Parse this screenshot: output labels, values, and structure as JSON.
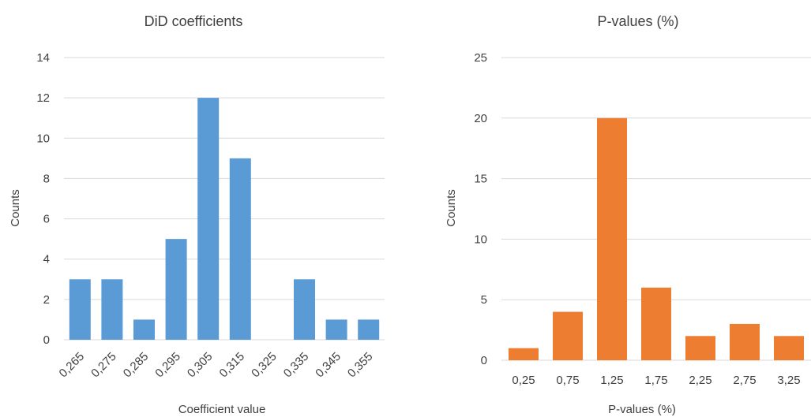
{
  "chart_data": [
    {
      "type": "bar",
      "title": "DiD coefficients",
      "xlabel": "Coefficient value",
      "ylabel": "Counts",
      "categories": [
        "0,265",
        "0,275",
        "0,285",
        "0,295",
        "0,305",
        "0,315",
        "0,325",
        "0,335",
        "0,345",
        "0,355"
      ],
      "values": [
        3,
        3,
        1,
        5,
        12,
        9,
        0,
        3,
        1,
        1
      ],
      "ylim": [
        0,
        14
      ],
      "yticks": [
        0,
        2,
        4,
        6,
        8,
        10,
        12,
        14
      ],
      "xtick_rotation": "diagonal",
      "grid": true,
      "color": "#5b9bd5"
    },
    {
      "type": "bar",
      "title": "P-values (%)",
      "xlabel": "P-values (%)",
      "ylabel": "Counts",
      "categories": [
        "0,25",
        "0,75",
        "1,25",
        "1,75",
        "2,25",
        "2,75",
        "3,25"
      ],
      "values": [
        1,
        4,
        20,
        6,
        2,
        3,
        2
      ],
      "ylim": [
        0,
        25
      ],
      "yticks": [
        0,
        5,
        10,
        15,
        20,
        25
      ],
      "grid": true,
      "color": "#ed7d31"
    }
  ]
}
